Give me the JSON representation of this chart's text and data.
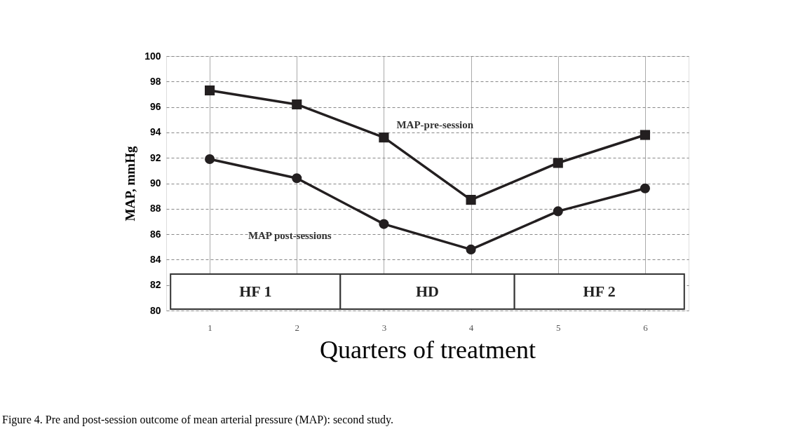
{
  "chart_data": {
    "type": "line",
    "xlabel": "Quarters of treatment",
    "ylabel": "MAP, mmHg",
    "x": [
      1,
      2,
      3,
      4,
      5,
      6
    ],
    "series": [
      {
        "name": "MAP-pre-session",
        "color": "#231f20",
        "marker": "square",
        "values": [
          97.3,
          96.2,
          93.6,
          88.7,
          91.6,
          93.8
        ]
      },
      {
        "name": "MAP post-sessions",
        "color": "#231f20",
        "marker": "circle",
        "values": [
          91.9,
          90.4,
          86.8,
          84.8,
          87.8,
          89.6
        ]
      }
    ],
    "xlim": [
      0.5,
      6.5
    ],
    "xticks": [
      1,
      2,
      3,
      4,
      5,
      6
    ],
    "ylim": [
      80,
      100
    ],
    "yticks": [
      80,
      82,
      84,
      86,
      88,
      90,
      92,
      94,
      96,
      98,
      100
    ],
    "grid": true,
    "legend": false,
    "line_style": "solid",
    "bands": [
      {
        "axis": "x",
        "from": 0.55,
        "to": 2.5,
        "label": "HF 1",
        "color": "#ffffff"
      },
      {
        "axis": "x",
        "from": 2.5,
        "to": 4.5,
        "label": "HD",
        "color": "#ffffff"
      },
      {
        "axis": "x",
        "from": 4.5,
        "to": 6.45,
        "label": "HF 2",
        "color": "#ffffff"
      }
    ],
    "annotations": [
      "Figure 4. Pre and post-session outcome of mean arterial pressure (MAP): second study."
    ]
  }
}
